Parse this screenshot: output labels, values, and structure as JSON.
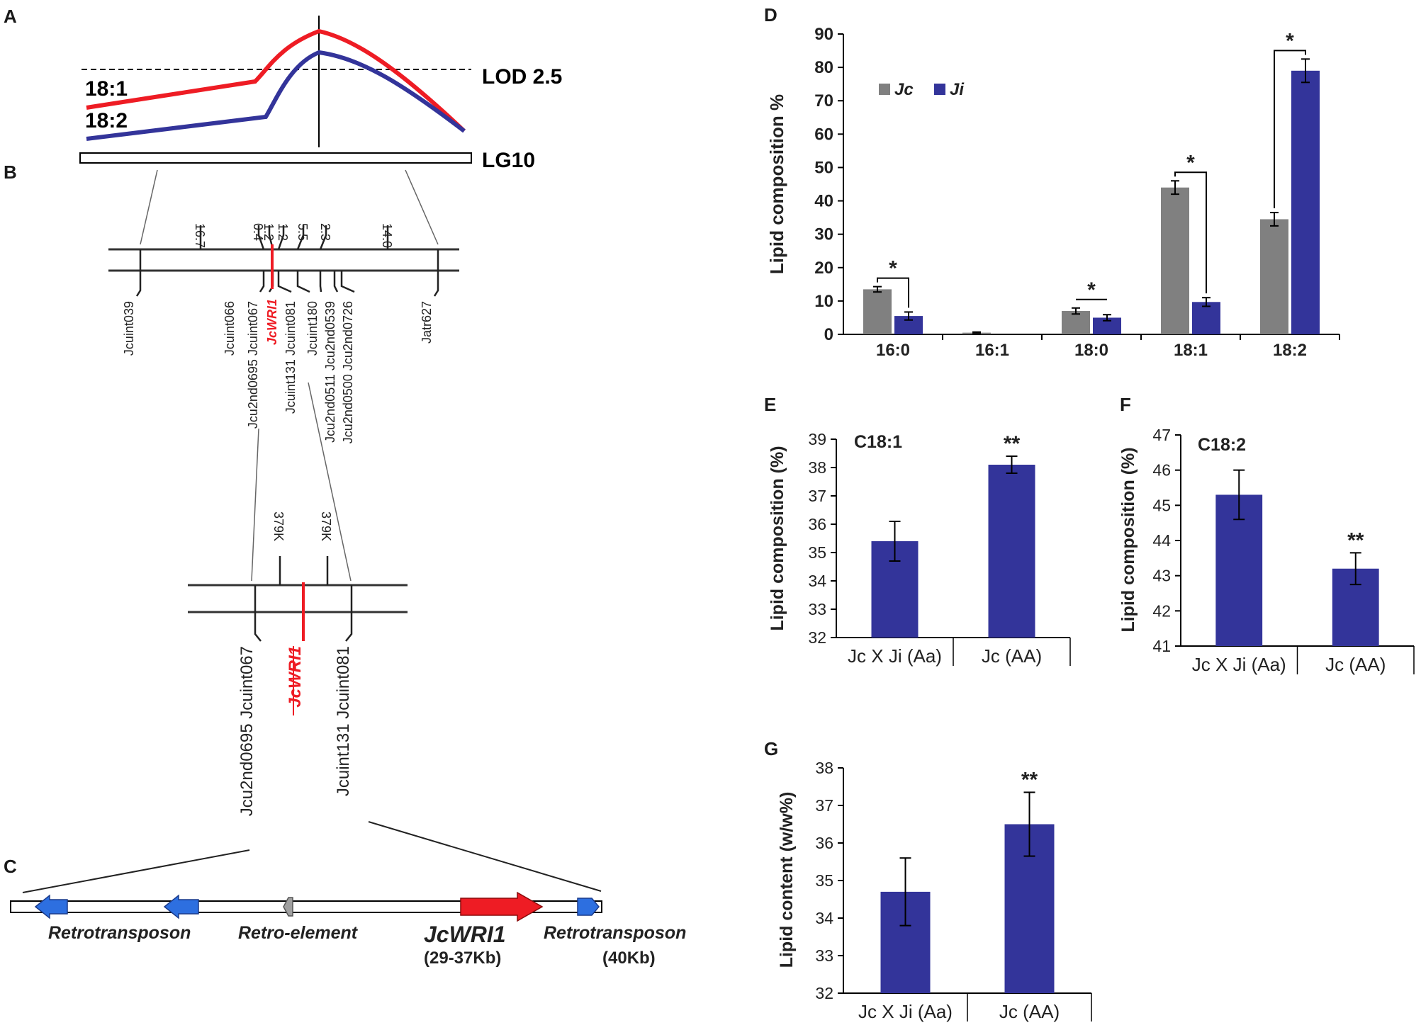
{
  "panel_labels": [
    "A",
    "B",
    "C",
    "D",
    "E",
    "F",
    "G"
  ],
  "colors": {
    "red": "#ee1c24",
    "blue": "#33349a",
    "bar_blue": "#33349a",
    "bar_gray": "#808080",
    "arrow_blue": "#2d6fe0",
    "arrow_gray": "#a0a0a0",
    "text": "#1a1a1a"
  },
  "panelA": {
    "lod_label": "LOD 2.5",
    "lg_label": "LG10",
    "trait_red": "18:1",
    "trait_blue": "18:2"
  },
  "panelB": {
    "distances": [
      "16.7",
      "0.4",
      "1.2",
      "1.2",
      "5.5",
      "2.3",
      "14.0"
    ],
    "markers": [
      "Jcuint039",
      "Jcuint066",
      "Jcu2nd0695 Jcuint067",
      "JcWRI1",
      "Jcuint131 Jcuint081",
      "Jcuint180",
      "Jcu2nd0511 Jcu2nd0539",
      "Jcu2nd0500 Jcu2nd0726",
      "Jatr627"
    ],
    "zoom_distances": [
      "379K",
      "379K"
    ],
    "zoom_markers": [
      "Jcu2nd0695 Jcuint067",
      "JcWRI1",
      "Jcuint131 Jcuint081"
    ]
  },
  "panelC": {
    "labels": [
      "Retrotransposon",
      "Retro-element",
      "JcWRI1",
      "Retrotransposon"
    ],
    "sublabels": [
      "(29-37Kb)",
      "(40Kb)"
    ]
  },
  "chart_data": [
    {
      "panel": "D",
      "type": "bar",
      "ylabel": "Lipid  composition  %",
      "ylim": [
        0,
        90
      ],
      "yticks": [
        "0",
        "10",
        "20",
        "30",
        "40",
        "50",
        "60",
        "70",
        "80",
        "90"
      ],
      "categories": [
        "16:0",
        "16:1",
        "18:0",
        "18:1",
        "18:2"
      ],
      "series": [
        {
          "name": "Jc",
          "values": [
            13.5,
            0.5,
            7.0,
            44.0,
            34.5
          ],
          "errors": [
            0.8,
            0.2,
            0.9,
            2.0,
            2.0
          ]
        },
        {
          "name": "Ji",
          "values": [
            5.5,
            0,
            5.0,
            9.7,
            79.0
          ],
          "errors": [
            1.2,
            0,
            0.9,
            1.3,
            3.5
          ]
        }
      ],
      "significance": [
        "*",
        "",
        "*",
        "*",
        "*"
      ]
    },
    {
      "panel": "E",
      "type": "bar",
      "title": "C18:1",
      "ylabel": "Lipid composition  (%)",
      "ylim": [
        32,
        39
      ],
      "yticks": [
        "32",
        "33",
        "34",
        "35",
        "36",
        "37",
        "38",
        "39"
      ],
      "categories": [
        "Jc X Ji (Aa)",
        "Jc (AA)"
      ],
      "values": [
        35.4,
        38.1
      ],
      "errors": [
        0.7,
        0.3
      ],
      "significance": [
        "",
        "**"
      ]
    },
    {
      "panel": "F",
      "type": "bar",
      "title": "C18:2",
      "ylabel": "Lipid composition  (%)",
      "ylim": [
        41,
        47
      ],
      "yticks": [
        "41",
        "42",
        "43",
        "44",
        "45",
        "46",
        "47"
      ],
      "categories": [
        "Jc X Ji (Aa)",
        "Jc (AA)"
      ],
      "values": [
        45.3,
        43.2
      ],
      "errors": [
        0.7,
        0.45
      ],
      "significance": [
        "",
        "**"
      ]
    },
    {
      "panel": "G",
      "type": "bar",
      "ylabel": "Lipid content (w/w%)",
      "ylim": [
        32,
        38
      ],
      "yticks": [
        "32",
        "33",
        "34",
        "35",
        "36",
        "37",
        "38"
      ],
      "categories": [
        "Jc X Ji (Aa)",
        "Jc (AA)"
      ],
      "values": [
        34.7,
        36.5
      ],
      "errors": [
        0.9,
        0.85
      ],
      "significance": [
        "",
        "**"
      ]
    }
  ]
}
